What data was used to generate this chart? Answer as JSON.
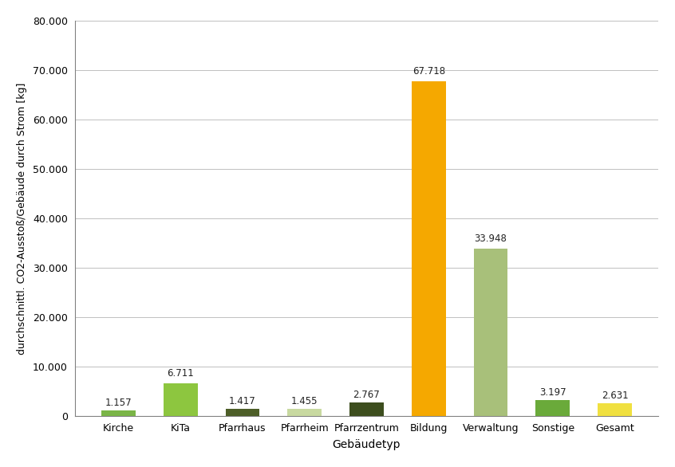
{
  "categories": [
    "Kirche",
    "KiTa",
    "Pfarrhaus",
    "Pfarrheim",
    "Pfarrzentrum",
    "Bildung",
    "Verwaltung",
    "Sonstige",
    "Gesamt"
  ],
  "values": [
    1157,
    6711,
    1417,
    1455,
    2767,
    67718,
    33948,
    3197,
    2631
  ],
  "labels": [
    "1.157",
    "6.711",
    "1.417",
    "1.455",
    "2.767",
    "67.718",
    "33.948",
    "3.197",
    "2.631"
  ],
  "bar_colors": [
    "#7ab547",
    "#8dc63f",
    "#4d5e28",
    "#c8d9a0",
    "#3d4e1e",
    "#f5a800",
    "#a8c07a",
    "#6aaa3a",
    "#f0e040"
  ],
  "ylabel": "durchschnittl. CO2-Ausstoß/Gebäude durch Strom [kg]",
  "xlabel": "Gebäudetyp",
  "ylim": [
    0,
    80000
  ],
  "yticks": [
    0,
    10000,
    20000,
    30000,
    40000,
    50000,
    60000,
    70000,
    80000
  ],
  "ytick_labels": [
    "0",
    "10.000",
    "20.000",
    "30.000",
    "40.000",
    "50.000",
    "60.000",
    "70.000",
    "80.000"
  ],
  "background_color": "#ffffff",
  "grid_color": "#c0c0c0",
  "spine_color": "#808080",
  "label_fontsize": 8.5,
  "axis_fontsize": 9,
  "bar_width": 0.55
}
